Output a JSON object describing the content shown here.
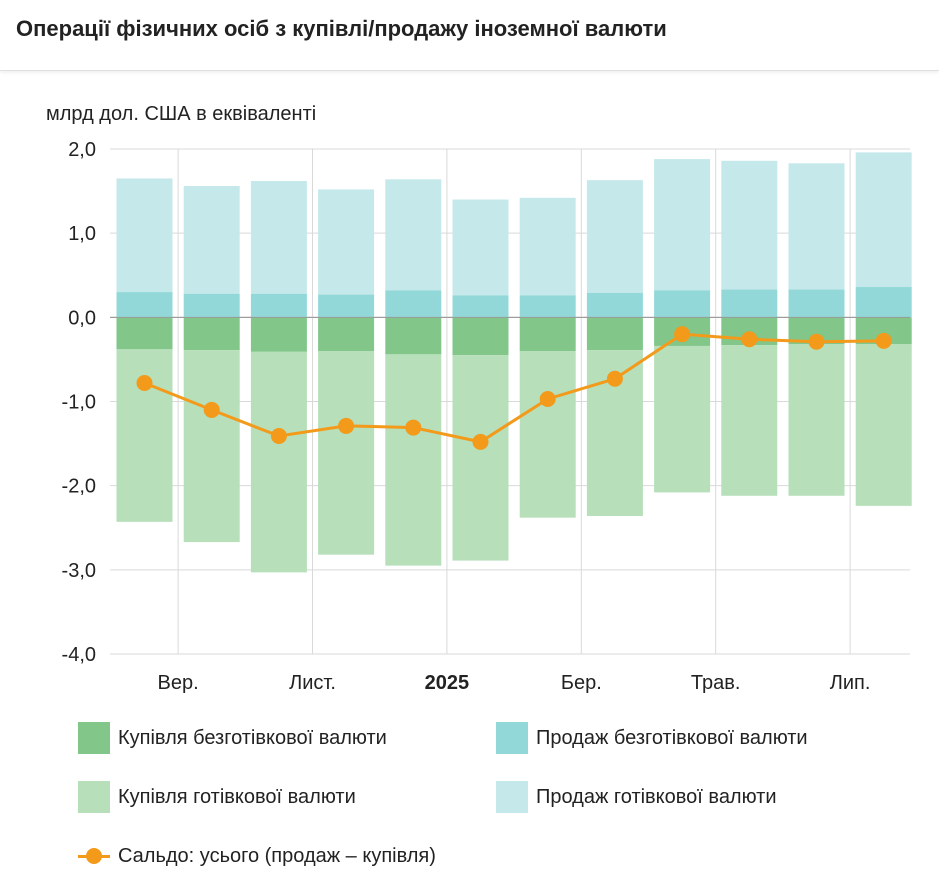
{
  "header": {
    "title": "Операції фізичних осіб з купівлі/продажу іноземної валюти"
  },
  "chart_data": {
    "type": "bar",
    "ylabel": "млрд дол. США в еквіваленті",
    "ylim": [
      -4,
      2
    ],
    "y_ticks": [
      2,
      1,
      0,
      -1,
      -2,
      -3,
      -4
    ],
    "y_tick_labels": [
      "2,0",
      "1,0",
      "0,0",
      "-1,0",
      "-2,0",
      "-3,0",
      "-4,0"
    ],
    "x_tick_labels": [
      {
        "label": "Вер.",
        "after_index": 0,
        "bold": false
      },
      {
        "label": "Лист.",
        "after_index": 2,
        "bold": false
      },
      {
        "label": "2025",
        "after_index": 4,
        "bold": true
      },
      {
        "label": "Бер.",
        "after_index": 6,
        "bold": false
      },
      {
        "label": "Трав.",
        "after_index": 8,
        "bold": false
      },
      {
        "label": "Лип.",
        "after_index": 10,
        "bold": false
      }
    ],
    "series": [
      {
        "name": "Купівля безготівкової валюти",
        "color": "#82c68a",
        "kind": "bar-negative-inner",
        "values": [
          -0.38,
          -0.39,
          -0.41,
          -0.4,
          -0.44,
          -0.45,
          -0.4,
          -0.39,
          -0.34,
          -0.33,
          -0.32,
          -0.32
        ]
      },
      {
        "name": "Купівля готівкової валюти",
        "color": "#b6dfba",
        "kind": "bar-negative-outer",
        "values": [
          -2.05,
          -2.28,
          -2.62,
          -2.42,
          -2.51,
          -2.44,
          -1.98,
          -1.97,
          -1.74,
          -1.79,
          -1.8,
          -1.92
        ]
      },
      {
        "name": "Продаж безготівкової валюти",
        "color": "#92d8d8",
        "kind": "bar-positive-inner",
        "values": [
          0.3,
          0.28,
          0.28,
          0.27,
          0.32,
          0.26,
          0.26,
          0.29,
          0.32,
          0.33,
          0.33,
          0.36
        ]
      },
      {
        "name": "Продаж готівкової валюти",
        "color": "#c5e8ea",
        "kind": "bar-positive-outer",
        "values": [
          1.35,
          1.28,
          1.34,
          1.25,
          1.32,
          1.14,
          1.16,
          1.34,
          1.56,
          1.53,
          1.5,
          1.6
        ]
      },
      {
        "name": "Сальдо: усього (продаж – купівля)",
        "color": "#f39a1b",
        "kind": "line",
        "values": [
          -0.78,
          -1.1,
          -1.41,
          -1.29,
          -1.31,
          -1.48,
          -0.97,
          -0.73,
          -0.2,
          -0.26,
          -0.29,
          -0.28
        ]
      }
    ]
  },
  "legend": [
    {
      "label": "Купівля безготівкової валюти",
      "color": "#82c68a",
      "type": "swatch"
    },
    {
      "label": "Продаж безготівкової валюти",
      "color": "#92d8d8",
      "type": "swatch"
    },
    {
      "label": "Купівля готівкової валюти",
      "color": "#b6dfba",
      "type": "swatch"
    },
    {
      "label": "Продаж готівкової валюти",
      "color": "#c5e8ea",
      "type": "swatch"
    },
    {
      "label": "Сальдо: усього (продаж – купівля)",
      "color": "#f39a1b",
      "type": "line"
    }
  ]
}
